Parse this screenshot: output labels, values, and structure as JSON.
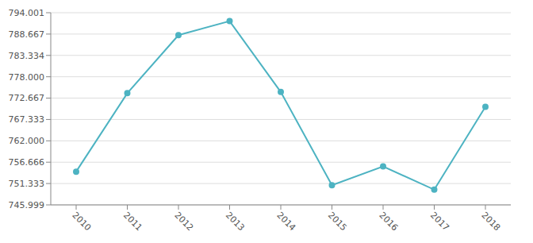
{
  "chart_data": {
    "type": "line",
    "categories": [
      "2010",
      "2011",
      "2012",
      "2013",
      "2014",
      "2015",
      "2016",
      "2017",
      "2018"
    ],
    "values": [
      754.3,
      773.9,
      788.4,
      791.9,
      774.2,
      750.9,
      755.6,
      749.8,
      770.5
    ],
    "color": "#4db3c2",
    "ylim": [
      745.999,
      794.001
    ],
    "yticks": [
      745.999,
      751.333,
      756.666,
      {
        "value": 762,
        "label": "762.000"
      },
      767.333,
      772.667,
      {
        "value": 778,
        "label": "778.000"
      },
      783.334,
      788.667,
      794.001
    ],
    "grid": true,
    "marker": "circle"
  }
}
